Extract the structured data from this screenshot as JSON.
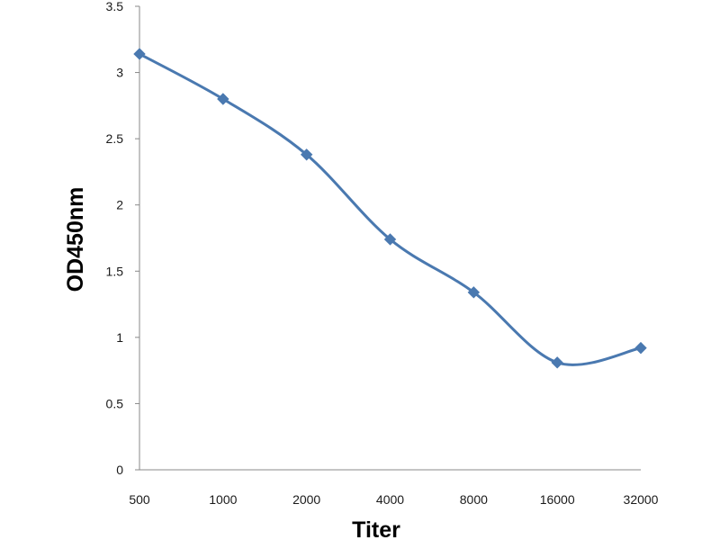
{
  "chart_data": {
    "type": "line",
    "title": "",
    "xlabel": "Titer",
    "ylabel": "OD450nm",
    "categories": [
      "500",
      "1000",
      "2000",
      "4000",
      "8000",
      "16000",
      "32000"
    ],
    "series": [
      {
        "values": [
          3.14,
          2.8,
          2.38,
          1.74,
          1.34,
          0.81,
          0.92
        ]
      }
    ],
    "ylim": [
      0,
      3.5
    ],
    "yticks": [
      "0",
      "0.5",
      "1",
      "1.5",
      "2",
      "2.5",
      "3",
      "3.5"
    ],
    "grid": false,
    "legend": "none",
    "line_color": "#4a79b0",
    "marker": "diamond",
    "smooth": true
  }
}
